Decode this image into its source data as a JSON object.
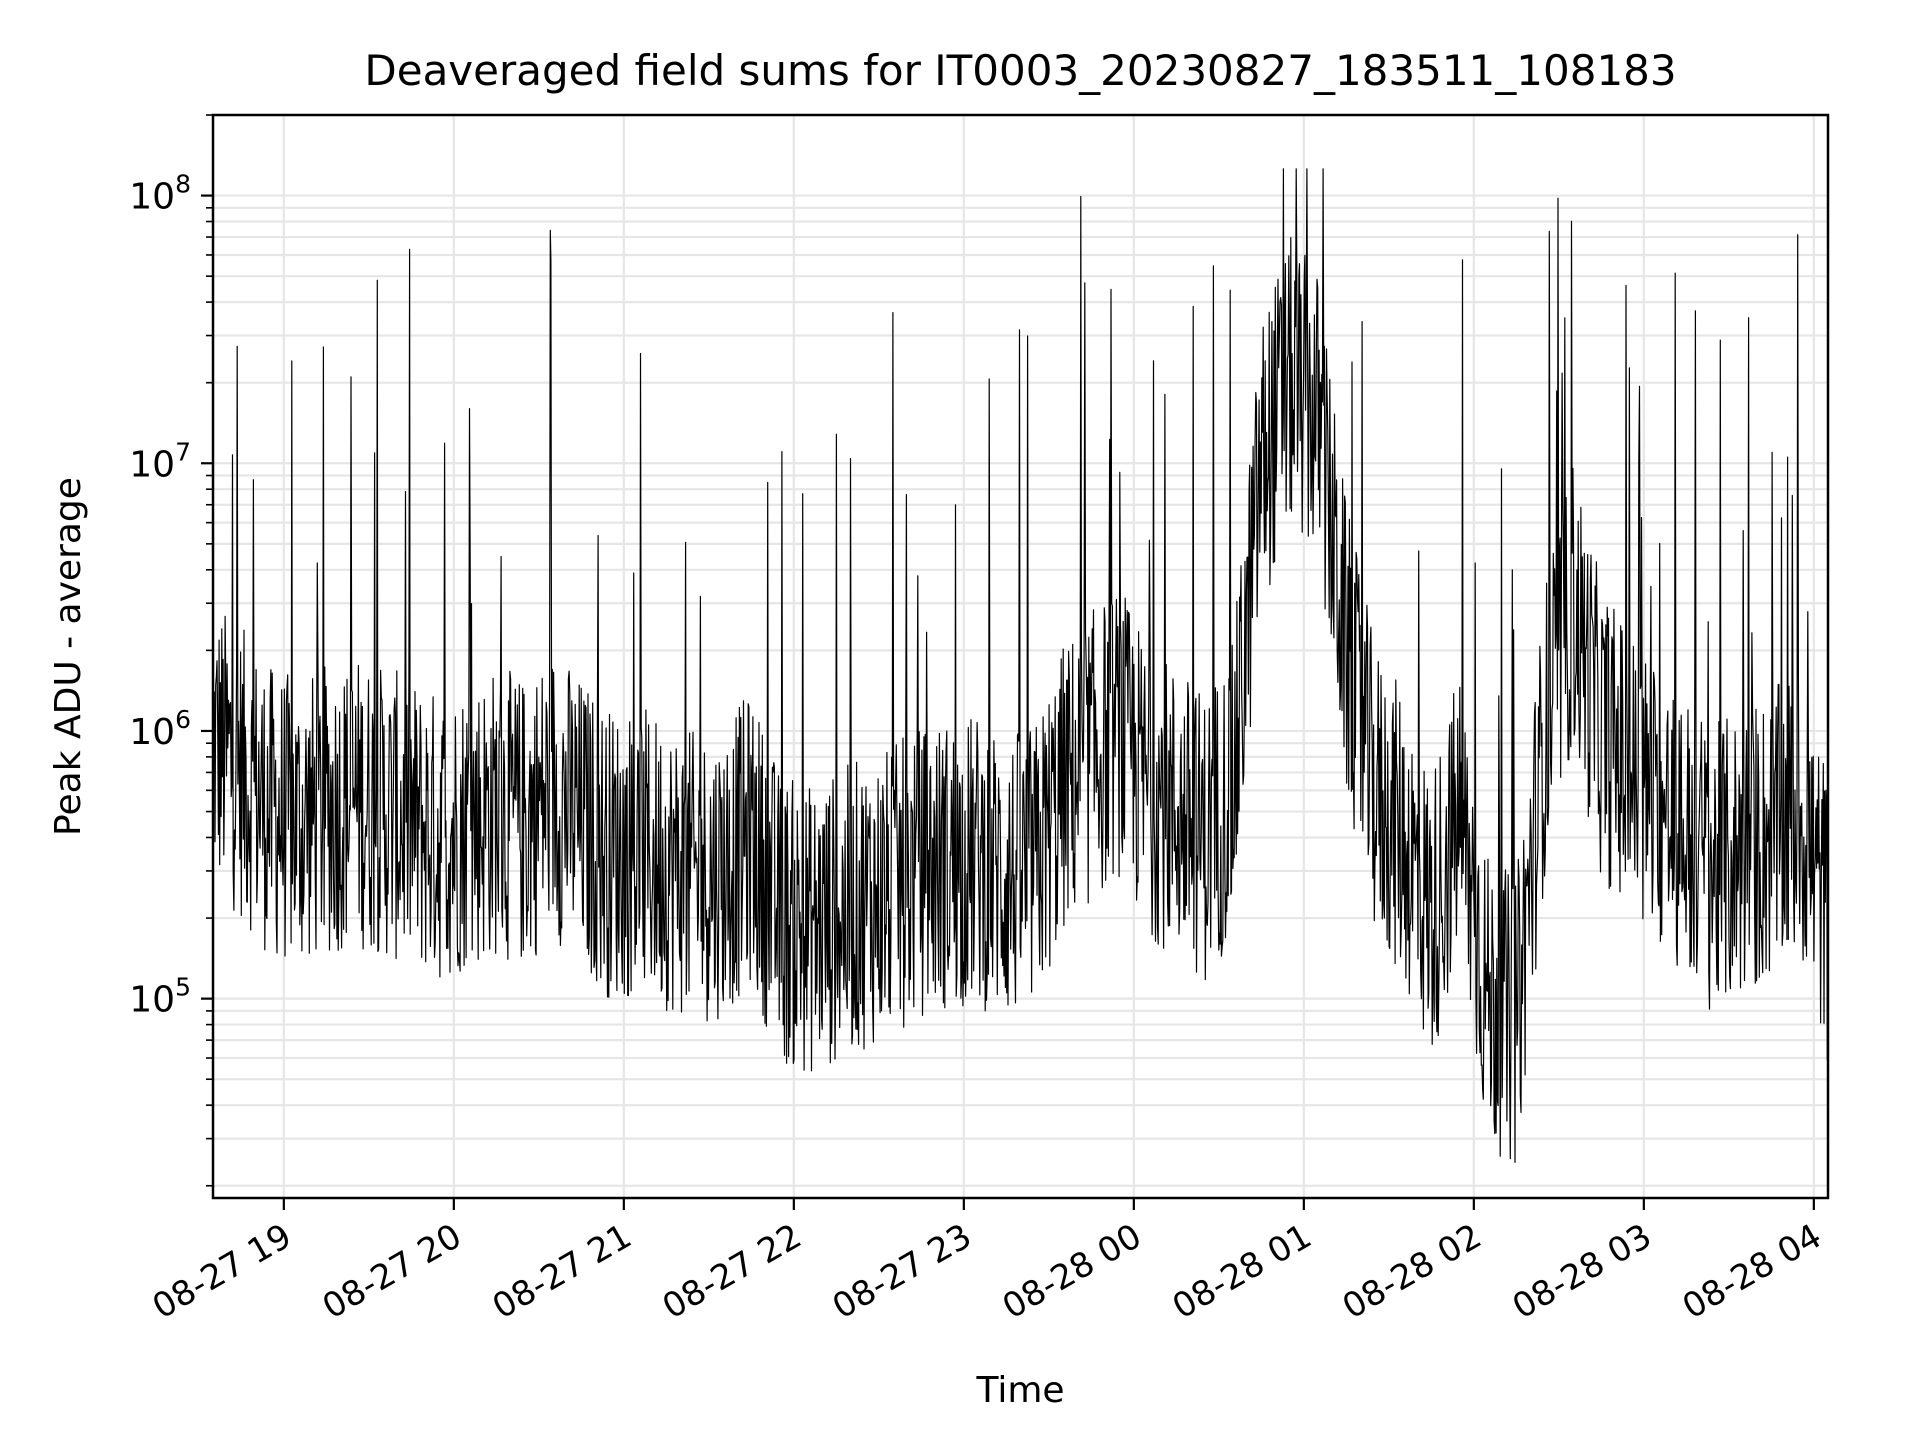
{
  "chart_data": {
    "type": "line",
    "title": "Deaveraged field sums for IT0003_20230827_183511_108183",
    "xlabel": "Time",
    "ylabel": "Peak ADU - average",
    "yscale": "log",
    "xlim": [
      "2023-08-27 18:35",
      "2023-08-28 04:05"
    ],
    "ylim": [
      18000,
      200000000
    ],
    "grid": true,
    "x_ticks": [
      {
        "value": "2023-08-27 19:00",
        "label": "08-27 19"
      },
      {
        "value": "2023-08-27 20:00",
        "label": "08-27 20"
      },
      {
        "value": "2023-08-27 21:00",
        "label": "08-27 21"
      },
      {
        "value": "2023-08-27 22:00",
        "label": "08-27 22"
      },
      {
        "value": "2023-08-27 23:00",
        "label": "08-27 23"
      },
      {
        "value": "2023-08-28 00:00",
        "label": "08-28 00"
      },
      {
        "value": "2023-08-28 01:00",
        "label": "08-28 01"
      },
      {
        "value": "2023-08-28 02:00",
        "label": "08-28 02"
      },
      {
        "value": "2023-08-28 03:00",
        "label": "08-28 03"
      },
      {
        "value": "2023-08-28 04:00",
        "label": "08-28 04"
      }
    ],
    "y_ticks": [
      {
        "value": 100000,
        "base": "10",
        "exp": "5"
      },
      {
        "value": 1000000,
        "base": "10",
        "exp": "6"
      },
      {
        "value": 10000000,
        "base": "10",
        "exp": "7"
      },
      {
        "value": 100000000,
        "base": "10",
        "exp": "8"
      }
    ],
    "series": [
      {
        "color": "#000000",
        "x": [
          "2023-08-27 18:35",
          "2023-08-27 18:45",
          "2023-08-27 18:55",
          "2023-08-27 19:05",
          "2023-08-27 19:15",
          "2023-08-27 19:25",
          "2023-08-27 19:35",
          "2023-08-27 19:45",
          "2023-08-27 19:55",
          "2023-08-27 20:05",
          "2023-08-27 20:15",
          "2023-08-27 20:25",
          "2023-08-27 20:35",
          "2023-08-27 20:45",
          "2023-08-27 20:55",
          "2023-08-27 21:05",
          "2023-08-27 21:15",
          "2023-08-27 21:25",
          "2023-08-27 21:35",
          "2023-08-27 21:45",
          "2023-08-27 21:55",
          "2023-08-27 22:05",
          "2023-08-27 22:15",
          "2023-08-27 22:25",
          "2023-08-27 22:35",
          "2023-08-27 22:45",
          "2023-08-27 22:55",
          "2023-08-27 23:05",
          "2023-08-27 23:15",
          "2023-08-27 23:25",
          "2023-08-27 23:35",
          "2023-08-27 23:45",
          "2023-08-27 23:55",
          "2023-08-28 00:05",
          "2023-08-28 00:15",
          "2023-08-28 00:25",
          "2023-08-28 00:35",
          "2023-08-28 00:45",
          "2023-08-28 00:55",
          "2023-08-28 01:05",
          "2023-08-28 01:15",
          "2023-08-28 01:25",
          "2023-08-28 01:35",
          "2023-08-28 01:45",
          "2023-08-28 01:55",
          "2023-08-28 02:05",
          "2023-08-28 02:15",
          "2023-08-28 02:25",
          "2023-08-28 02:35",
          "2023-08-28 02:45",
          "2023-08-28 02:55",
          "2023-08-28 03:05",
          "2023-08-28 03:15",
          "2023-08-28 03:25",
          "2023-08-28 03:35",
          "2023-08-28 03:45",
          "2023-08-28 03:55",
          "2023-08-28 04:05"
        ],
        "y": [
          900000,
          700000,
          500000,
          450000,
          500000,
          550000,
          500000,
          450000,
          400000,
          450000,
          500000,
          450000,
          600000,
          450000,
          350000,
          350000,
          320000,
          280000,
          300000,
          400000,
          200000,
          180000,
          200000,
          230000,
          250000,
          300000,
          320000,
          330000,
          280000,
          300000,
          600000,
          800000,
          1000000,
          600000,
          500000,
          400000,
          600000,
          10000000,
          20000000,
          15000000,
          2000000,
          600000,
          400000,
          200000,
          500000,
          100000,
          80000,
          1000000,
          3000000,
          1000000,
          700000,
          500000,
          400000,
          300000,
          350000,
          400000,
          500000,
          200000
        ]
      }
    ]
  }
}
